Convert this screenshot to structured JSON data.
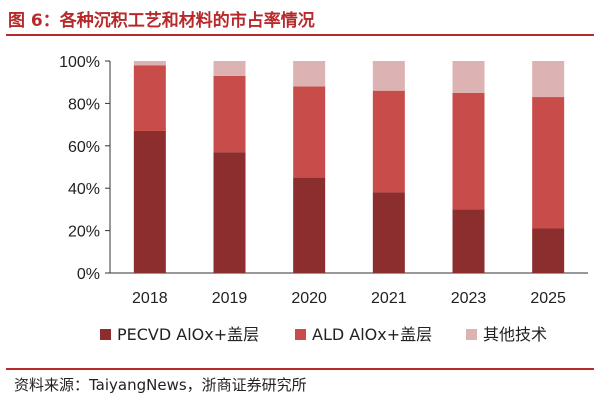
{
  "header": {
    "title": "图 6：各种沉积工艺和材料的市占率情况"
  },
  "footer": {
    "source": "资料来源：TaiyangNews，浙商证券研究所"
  },
  "chart_data": {
    "type": "bar",
    "stacked": true,
    "categories": [
      "2018",
      "2019",
      "2020",
      "2021",
      "2023",
      "2025"
    ],
    "series": [
      {
        "name": "PECVD AlOx+盖层",
        "values": [
          67,
          57,
          45,
          38,
          30,
          21
        ],
        "color": "#8b2e2d"
      },
      {
        "name": "ALD AlOx+盖层",
        "values": [
          31,
          36,
          43,
          48,
          55,
          62
        ],
        "color": "#c84d4a"
      },
      {
        "name": "其他技术",
        "values": [
          2,
          7,
          12,
          14,
          15,
          17
        ],
        "color": "#ddb2b2"
      }
    ],
    "ylim": [
      0,
      100
    ],
    "yticks": [
      "0%",
      "20%",
      "40%",
      "60%",
      "80%",
      "100%"
    ],
    "legend_position": "bottom",
    "grid": false
  }
}
